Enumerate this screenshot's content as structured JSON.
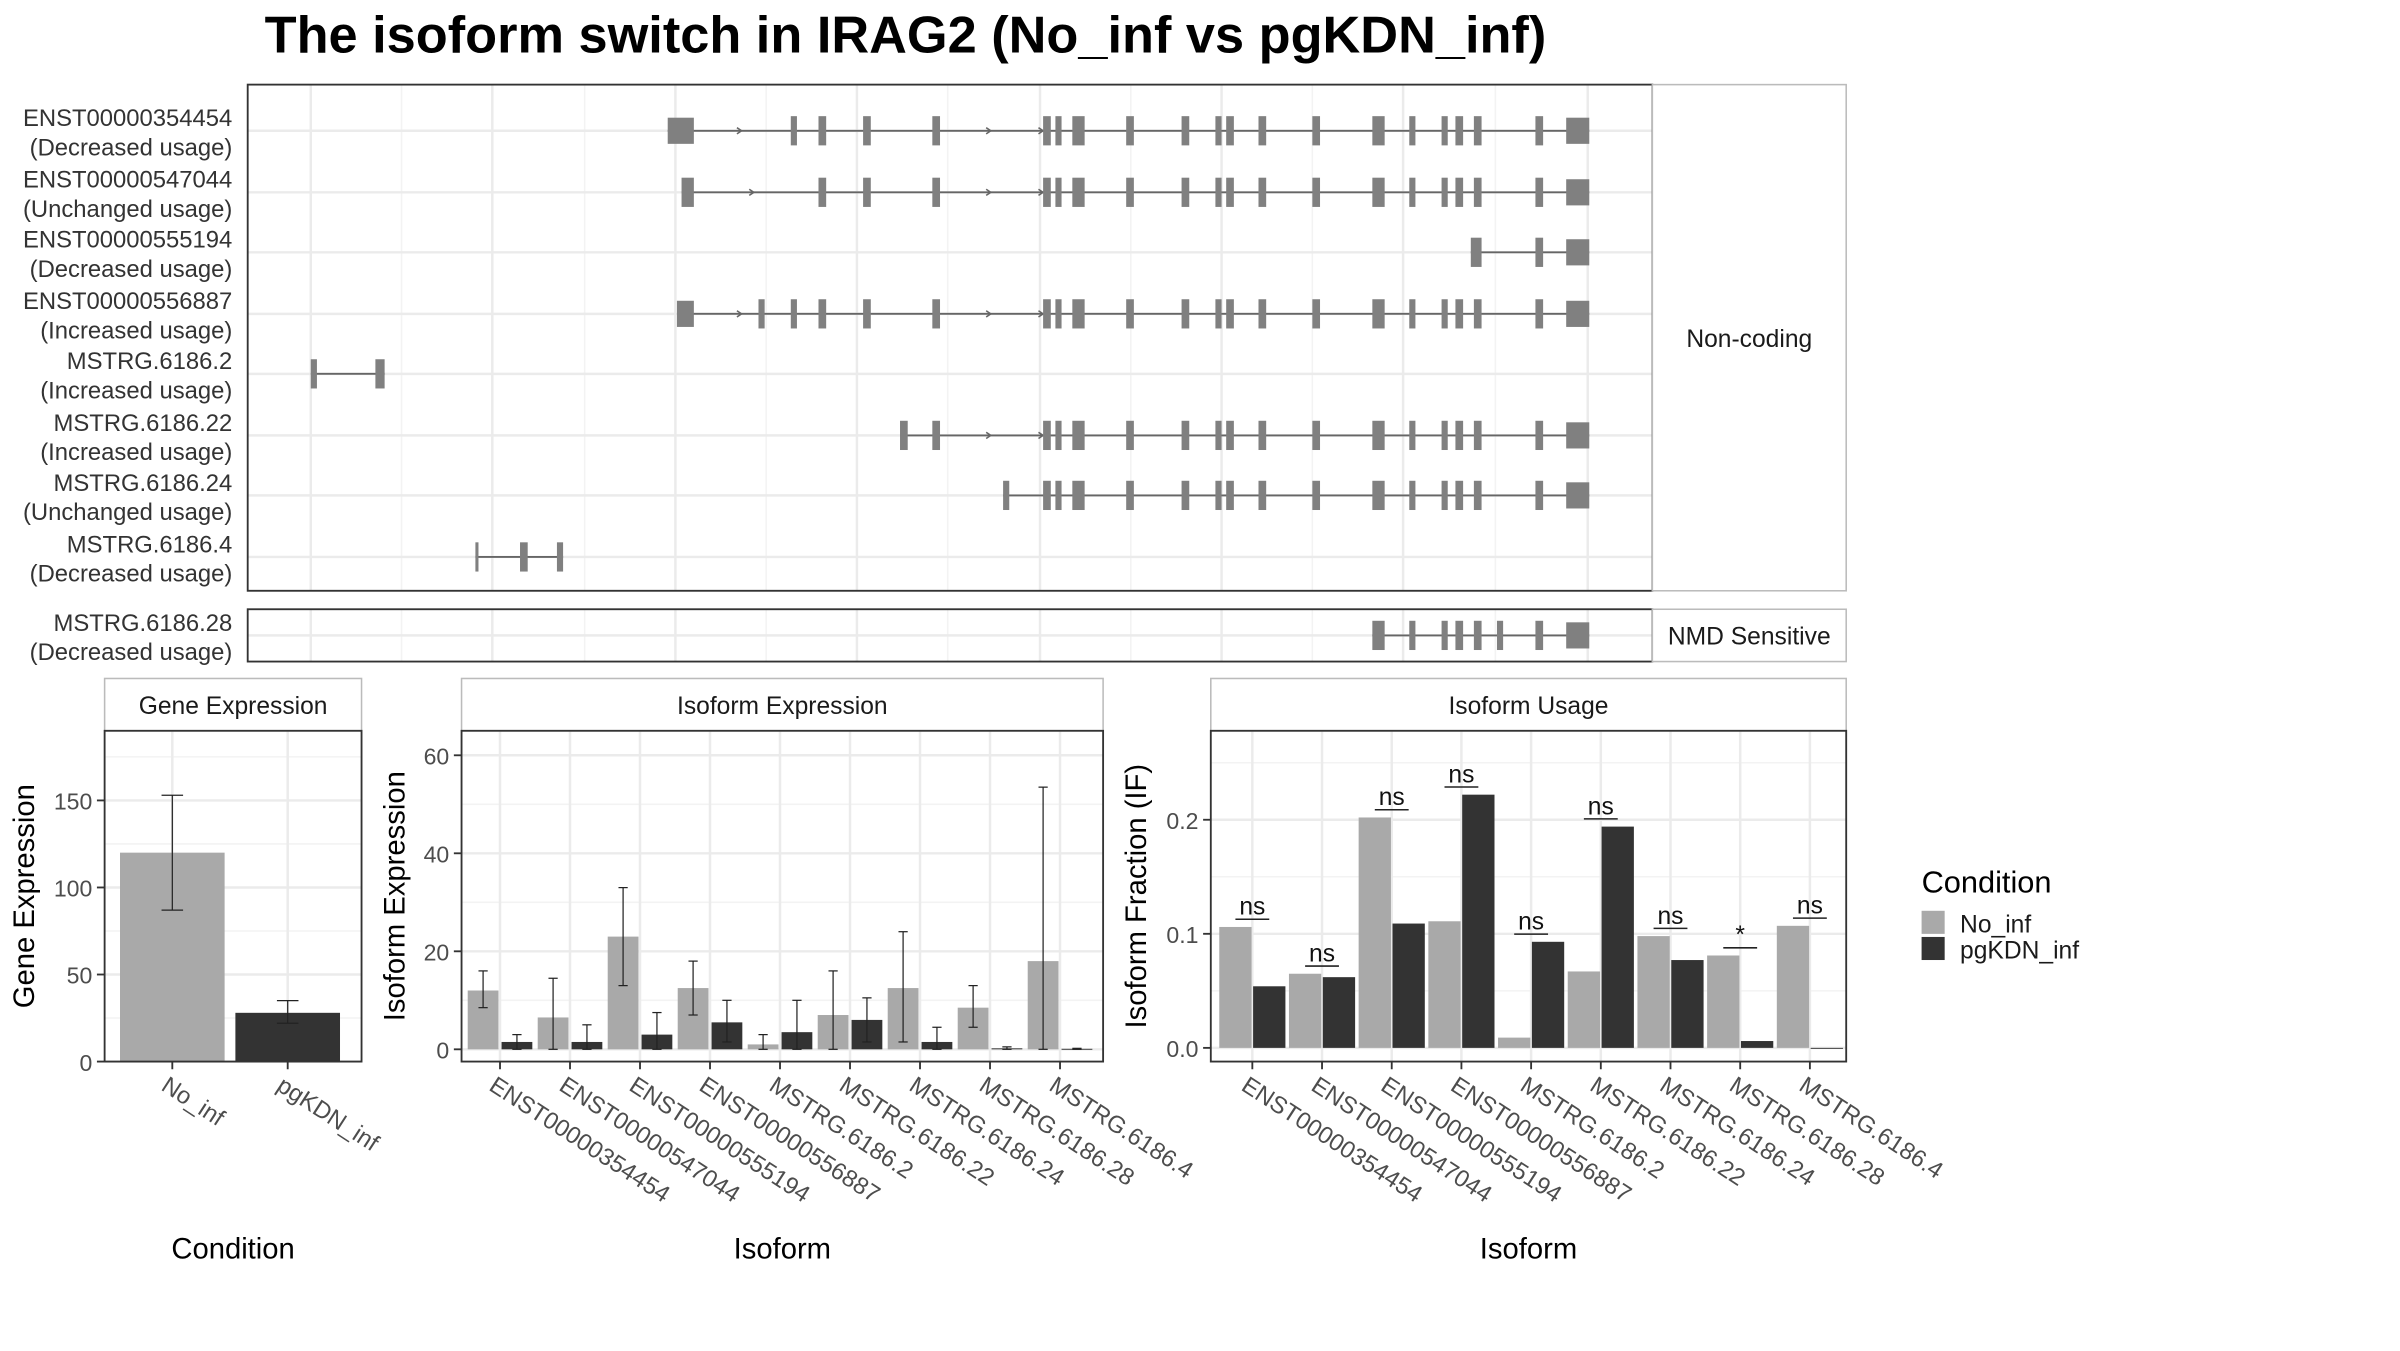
{
  "title": "The isoform switch in IRAG2 (No_inf vs pgKDN_inf)",
  "colors": {
    "no_inf": "#a9a9a9",
    "pgkdn_inf": "#333333",
    "exon": "#808080",
    "intron": "#666666"
  },
  "transcript_panel": {
    "groups": [
      {
        "label": "Non-coding",
        "transcripts": [
          {
            "id": "ENST00000354454",
            "usage": "(Decreased usage)"
          },
          {
            "id": "ENST00000547044",
            "usage": "(Unchanged usage)"
          },
          {
            "id": "ENST00000555194",
            "usage": "(Decreased usage)"
          },
          {
            "id": "ENST00000556887",
            "usage": "(Increased usage)"
          },
          {
            "id": "MSTRG.6186.2",
            "usage": "(Increased usage)"
          },
          {
            "id": "MSTRG.6186.22",
            "usage": "(Increased usage)"
          },
          {
            "id": "MSTRG.6186.24",
            "usage": "(Unchanged usage)"
          },
          {
            "id": "MSTRG.6186.4",
            "usage": "(Decreased usage)"
          }
        ]
      },
      {
        "label": "NMD Sensitive",
        "transcripts": [
          {
            "id": "MSTRG.6186.28",
            "usage": "(Decreased usage)"
          }
        ]
      }
    ]
  },
  "chart_data": [
    {
      "type": "bar",
      "title": "Gene Expression",
      "xlabel": "Condition",
      "ylabel": "Gene Expression",
      "categories": [
        "No_inf",
        "pgKDN_inf"
      ],
      "values": [
        120,
        28
      ],
      "error_low": [
        87,
        22
      ],
      "error_high": [
        153,
        35
      ],
      "ylim": [
        0,
        190
      ],
      "yticks": [
        0,
        50,
        100,
        150
      ],
      "grid": true
    },
    {
      "type": "bar",
      "title": "Isoform Expression",
      "xlabel": "Isoform",
      "ylabel": "Isoform Expression",
      "categories": [
        "ENST00000354454",
        "ENST00000547044",
        "ENST00000555194",
        "ENST00000556887",
        "MSTRG.6186.2",
        "MSTRG.6186.22",
        "MSTRG.6186.24",
        "MSTRG.6186.28",
        "MSTRG.6186.4"
      ],
      "series": [
        {
          "name": "No_inf",
          "values": [
            12,
            6.5,
            23,
            12.5,
            1,
            7,
            12.5,
            8.5,
            18
          ],
          "error_low": [
            8.5,
            0,
            13,
            7,
            0,
            0,
            1.5,
            4.5,
            0
          ],
          "error_high": [
            16,
            14.5,
            33,
            18,
            3,
            16,
            24,
            13,
            53.5
          ]
        },
        {
          "name": "pgKDN_inf",
          "values": [
            1.5,
            1.5,
            3,
            5.5,
            3.5,
            6,
            1.5,
            0.2,
            0.1
          ],
          "error_low": [
            0,
            0,
            0,
            1.5,
            0,
            1.5,
            0,
            0,
            0
          ],
          "error_high": [
            3,
            5,
            7.5,
            10,
            10,
            10.5,
            4.5,
            0.5,
            0.2
          ]
        }
      ],
      "ylim": [
        -2.5,
        65
      ],
      "yticks": [
        0,
        20,
        40,
        60
      ],
      "grid": true
    },
    {
      "type": "bar",
      "title": "Isoform Usage",
      "xlabel": "Isoform",
      "ylabel": "Isoform Fraction (IF)",
      "categories": [
        "ENST00000354454",
        "ENST00000547044",
        "ENST00000555194",
        "ENST00000556887",
        "MSTRG.6186.2",
        "MSTRG.6186.22",
        "MSTRG.6186.24",
        "MSTRG.6186.28",
        "MSTRG.6186.4"
      ],
      "series": [
        {
          "name": "No_inf",
          "values": [
            0.106,
            0.065,
            0.202,
            0.111,
            0.009,
            0.067,
            0.098,
            0.081,
            0.107
          ]
        },
        {
          "name": "pgKDN_inf",
          "values": [
            0.054,
            0.062,
            0.109,
            0.222,
            0.093,
            0.194,
            0.077,
            0.006,
            0.0
          ]
        }
      ],
      "significance": [
        "ns",
        "ns",
        "ns",
        "ns",
        "ns",
        "ns",
        "ns",
        "*",
        "ns"
      ],
      "ylim": [
        -0.012,
        0.278
      ],
      "yticks": [
        0.0,
        0.1,
        0.2
      ],
      "ytick_labels": [
        "0.0",
        "0.1",
        "0.2"
      ],
      "grid": true
    }
  ],
  "legend": {
    "title": "Condition",
    "placement": "right",
    "entries": [
      "No_inf",
      "pgKDN_inf"
    ]
  }
}
